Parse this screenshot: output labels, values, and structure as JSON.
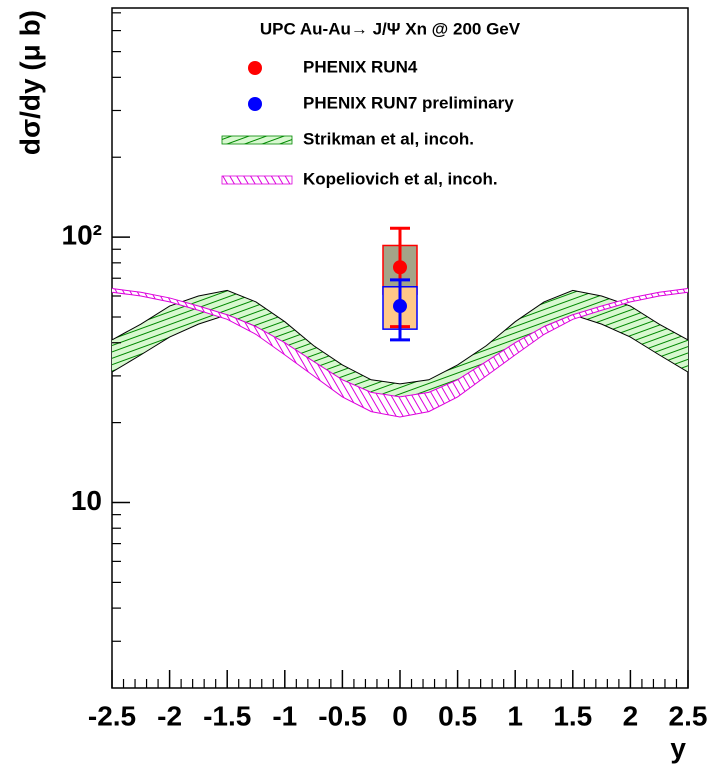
{
  "chart_data": {
    "type": "scatter",
    "title": "UPC Au-Au→ J/Ψ Xn @ 200 GeV",
    "x_label": "y",
    "y_label": "dσ/dy (μ b)",
    "log_y": true,
    "xlim": [
      -2.5,
      2.5
    ],
    "ylim": [
      2,
      730
    ],
    "xticks": [
      -2.5,
      -2,
      -1.5,
      -1,
      -0.5,
      0,
      0.5,
      1,
      1.5,
      2,
      2.5
    ],
    "xminorticks": [
      -2.4,
      -2.3,
      -2.2,
      -2.1,
      -1.9,
      -1.8,
      -1.7,
      -1.6,
      -1.4,
      -1.3,
      -1.2,
      -1.1,
      -0.9,
      -0.8,
      -0.7,
      -0.6,
      -0.4,
      -0.3,
      -0.2,
      -0.1,
      0.1,
      0.2,
      0.3,
      0.4,
      0.6,
      0.7,
      0.8,
      0.9,
      1.1,
      1.2,
      1.3,
      1.4,
      1.6,
      1.7,
      1.8,
      1.9,
      2.1,
      2.2,
      2.3,
      2.4
    ],
    "yticks": [
      10,
      {
        "value": 100,
        "label": "10²"
      }
    ],
    "yminorticks": [
      3,
      4,
      5,
      6,
      7,
      8,
      9,
      20,
      30,
      40,
      50,
      60,
      70,
      80,
      90,
      200,
      300,
      400,
      500,
      600,
      700
    ],
    "series": [
      {
        "name": "PHENIX RUN4",
        "color": "#ff0000",
        "box_color": "#a4a488",
        "x": [
          0
        ],
        "values": [
          77
        ],
        "stat_err": [
          31
        ],
        "sys_err": [
          16
        ]
      },
      {
        "name": "PHENIX RUN7 preliminary",
        "color": "#0000ff",
        "box_color": "#ffc888",
        "x": [
          0
        ],
        "values": [
          55
        ],
        "stat_err": [
          14
        ],
        "sys_err": [
          10
        ]
      }
    ],
    "bands": [
      {
        "name": "Strikman et al, incoh.",
        "color": "#008800",
        "fill": "#d8f8d0",
        "edge": "#000000",
        "x": [
          -2.5,
          -2.25,
          -2,
          -1.75,
          -1.5,
          -1.25,
          -1,
          -0.75,
          -0.5,
          -0.25,
          0,
          0.25,
          0.5,
          0.75,
          1,
          1.25,
          1.5,
          1.75,
          2,
          2.25,
          2.5
        ],
        "high": [
          41,
          47,
          55,
          60,
          63,
          57,
          48,
          39,
          33,
          29,
          28,
          29,
          33,
          39,
          48,
          57,
          63,
          60,
          55,
          47,
          41
        ],
        "low": [
          31,
          36,
          42,
          47,
          51,
          46,
          38,
          31,
          26,
          23.5,
          22.5,
          23.5,
          26,
          31,
          38,
          46,
          51,
          47,
          42,
          36,
          31
        ]
      },
      {
        "name": "Kopeliovich et al, incoh.",
        "color": "#dd00dd",
        "fill": "#ffffff",
        "edge": "#dd00dd",
        "x": [
          -2.5,
          -2.25,
          -2,
          -1.75,
          -1.5,
          -1.25,
          -1,
          -0.75,
          -0.5,
          -0.25,
          0,
          0.25,
          0.5,
          0.75,
          1,
          1.25,
          1.5,
          1.75,
          2,
          2.25,
          2.5
        ],
        "high": [
          64,
          62,
          59,
          55,
          51,
          46,
          40,
          34,
          29,
          26,
          25,
          26,
          29,
          34,
          40,
          46,
          51,
          55,
          59,
          62,
          64
        ],
        "low": [
          62,
          60,
          57,
          53,
          49,
          43,
          36,
          30,
          25,
          22,
          21,
          22,
          25,
          30,
          36,
          43,
          49,
          53,
          57,
          60,
          62
        ]
      }
    ]
  }
}
